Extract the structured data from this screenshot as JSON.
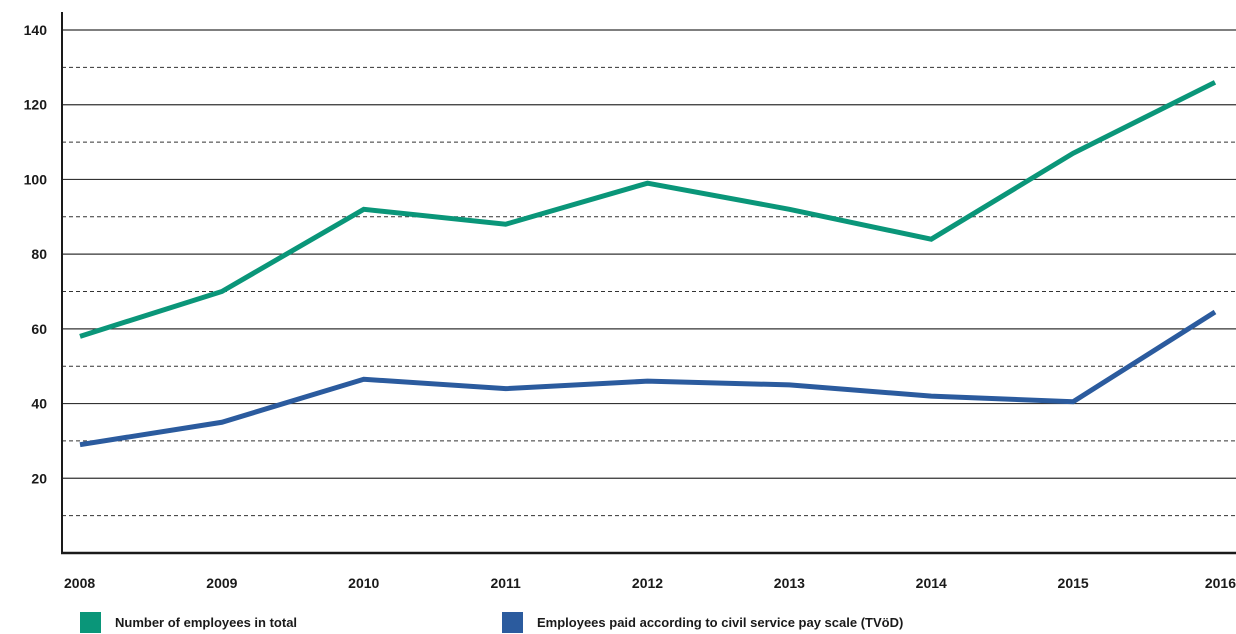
{
  "chart_data": {
    "type": "line",
    "categories": [
      "2008",
      "2009",
      "2010",
      "2011",
      "2012",
      "2013",
      "2014",
      "2015",
      "2016"
    ],
    "ylim": [
      0,
      140
    ],
    "yticks": [
      20,
      40,
      60,
      80,
      100,
      120,
      140
    ],
    "grid": "solid lines at labeled ticks, dashed lines at intermediate 10s",
    "legend_position": "bottom",
    "series": [
      {
        "name": "Number of employees in total",
        "color": "#0a9679",
        "values": [
          58,
          70,
          92,
          88,
          99,
          92,
          84,
          107,
          126
        ]
      },
      {
        "name": "Employees paid according to civil service pay scale (TVöD)",
        "color": "#2b5b9e",
        "values": [
          29,
          35,
          46.5,
          44,
          46,
          45,
          42,
          40.5,
          64.5
        ]
      }
    ]
  }
}
